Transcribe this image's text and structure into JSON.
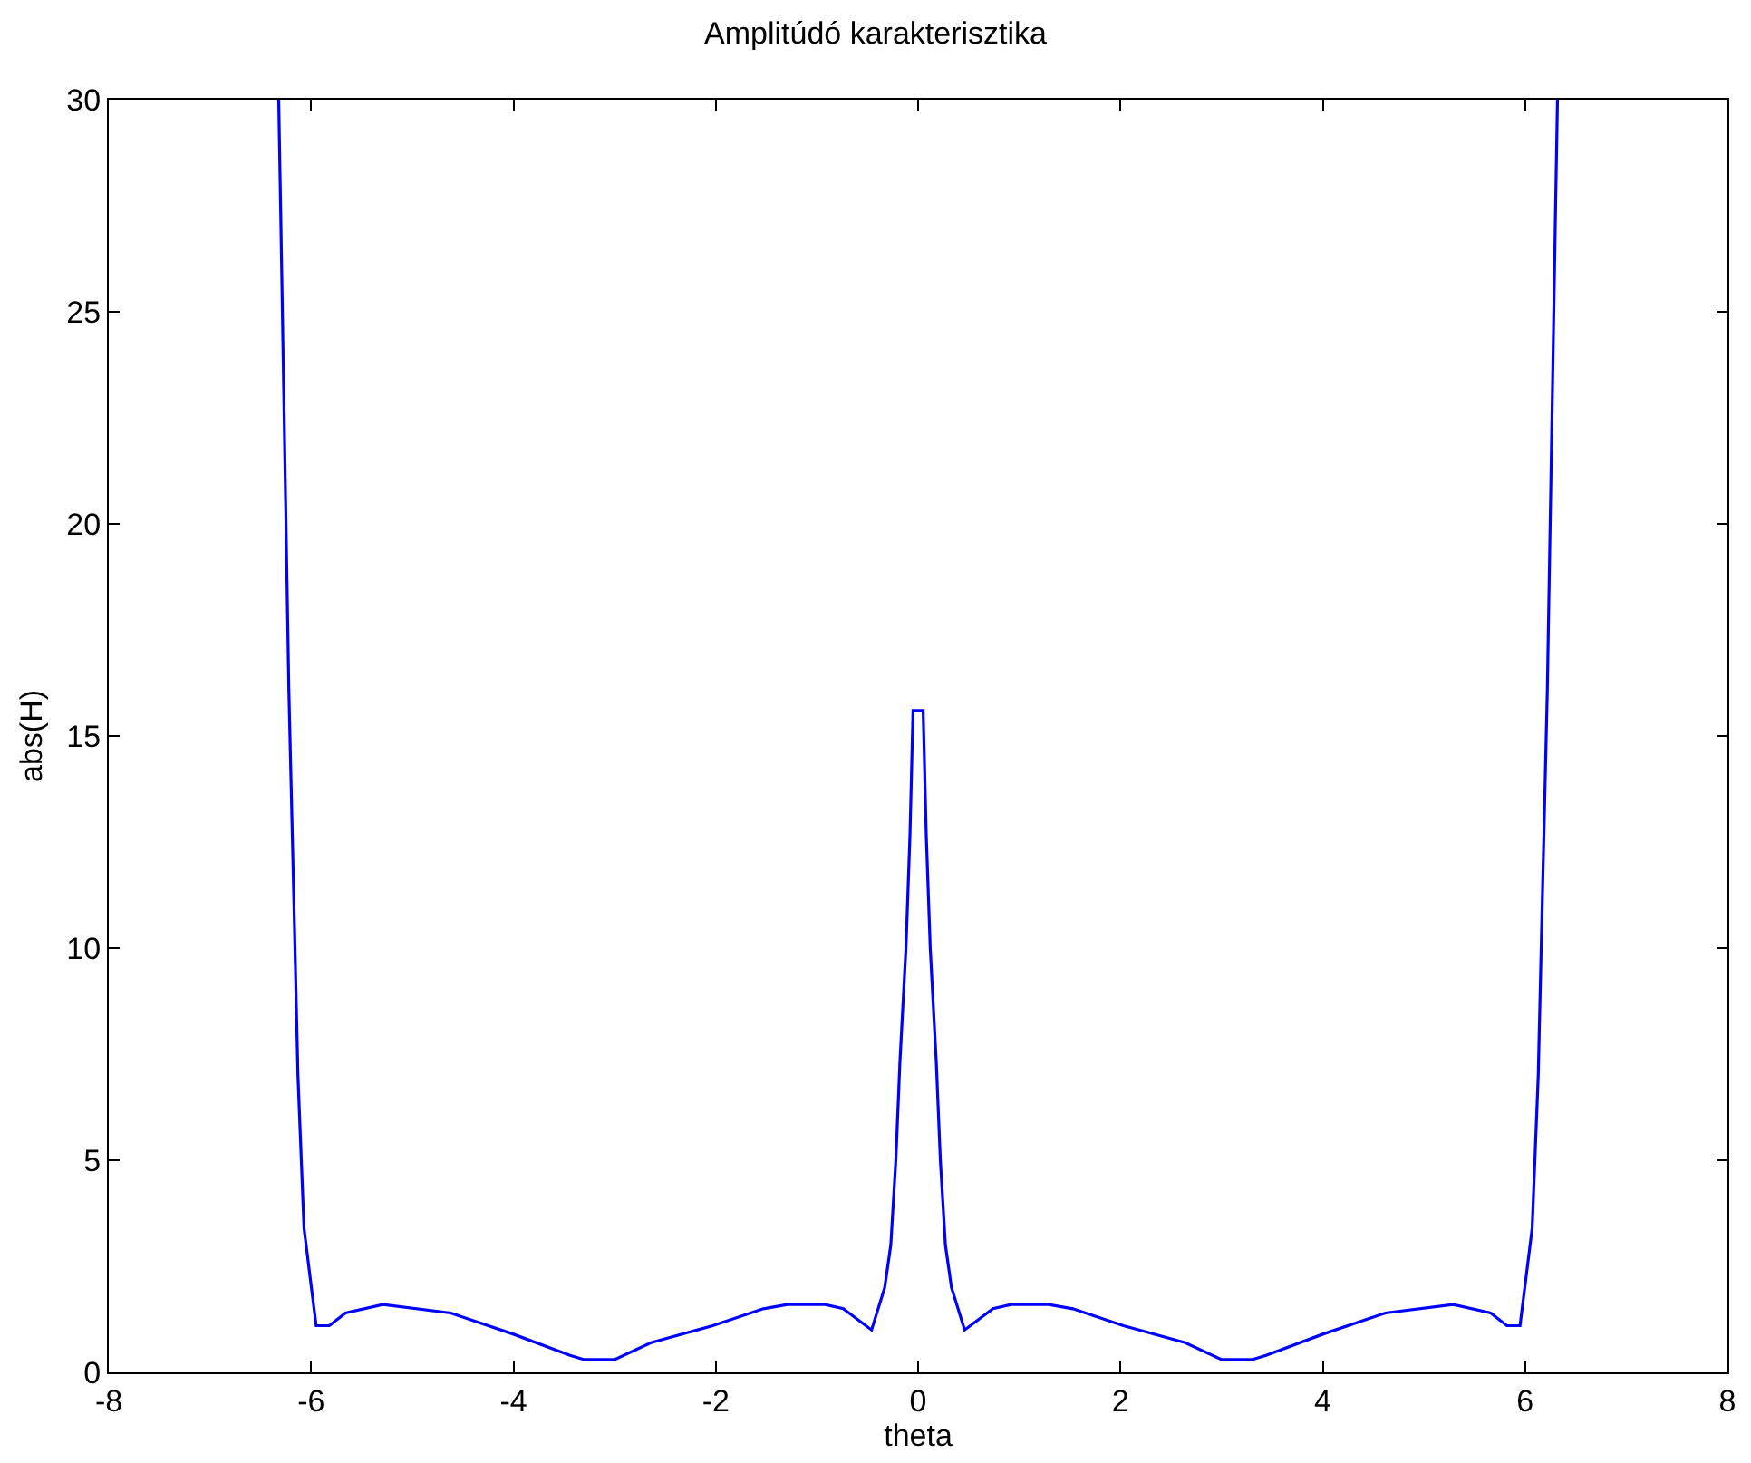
{
  "chart_data": {
    "type": "line",
    "title": "Amplitúdó karakterisztika",
    "xlabel": "theta",
    "ylabel": "abs(H)",
    "series": [
      {
        "color": "#0000ff",
        "x": [
          -6.32,
          -6.3,
          -6.26,
          -6.22,
          -6.17,
          -6.13,
          -6.07,
          -5.95,
          -5.82,
          -5.66,
          -5.29,
          -4.62,
          -4.0,
          -3.44,
          -3.3,
          -3.0,
          -2.64,
          -2.03,
          -1.53,
          -1.29,
          -0.92,
          -0.74,
          -0.46,
          -0.33,
          -0.27,
          -0.22,
          -0.18,
          -0.12,
          -0.08,
          -0.05,
          0.05,
          0.08,
          0.12,
          0.18,
          0.22,
          0.27,
          0.33,
          0.46,
          0.74,
          0.92,
          1.29,
          1.53,
          2.03,
          2.64,
          3.0,
          3.3,
          3.44,
          4.0,
          4.62,
          5.29,
          5.66,
          5.82,
          5.95,
          6.07,
          6.13,
          6.17,
          6.22,
          6.26,
          6.3,
          6.32
        ],
        "values": [
          30,
          27.3,
          21.7,
          16.1,
          11.1,
          7.0,
          3.4,
          1.1,
          1.1,
          1.4,
          1.6,
          1.4,
          0.9,
          0.4,
          0.3,
          0.3,
          0.7,
          1.1,
          1.5,
          1.6,
          1.6,
          1.5,
          1.0,
          2.0,
          3.0,
          5.0,
          7.3,
          10.0,
          12.7,
          15.6,
          15.6,
          12.7,
          10.0,
          7.3,
          5.0,
          3.0,
          2.0,
          1.0,
          1.5,
          1.6,
          1.6,
          1.5,
          1.1,
          0.7,
          0.3,
          0.3,
          0.4,
          0.9,
          1.4,
          1.6,
          1.4,
          1.1,
          1.1,
          3.4,
          7.0,
          11.1,
          16.1,
          21.7,
          27.3,
          30
        ]
      }
    ],
    "xlim": [
      -8,
      8
    ],
    "xticks": [
      -8,
      -6,
      -4,
      -2,
      0,
      2,
      4,
      6,
      8
    ],
    "ylim": [
      0,
      30
    ],
    "yticks": [
      0,
      5,
      10,
      15,
      20,
      25,
      30
    ],
    "marker": "none",
    "line_style": "solid"
  }
}
